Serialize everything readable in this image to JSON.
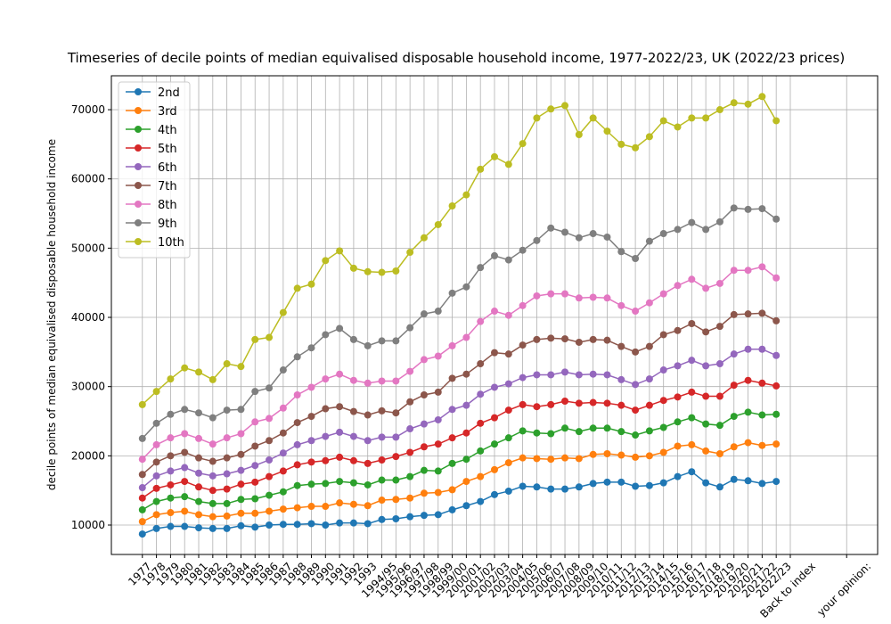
{
  "chart_data": {
    "type": "line",
    "title": "Timeseries of decile points of median equivalised disposable household income, 1977-2022/23, UK (2022/23 prices)",
    "y_label": "decile points of median equivalised disposable household income",
    "categories": [
      "1977",
      "1978",
      "1979",
      "1980",
      "1981",
      "1982",
      "1983",
      "1984",
      "1985",
      "1986",
      "1987",
      "1988",
      "1989",
      "1990",
      "1991",
      "1992",
      "1993",
      "1994/95",
      "1995/96",
      "1996/97",
      "1997/98",
      "1998/99",
      "1999/00",
      "2000/01",
      "2001/02",
      "2002/03",
      "2003/04",
      "2004/05",
      "2005/06",
      "2006/07",
      "2007/08",
      "2008/09",
      "2009/10",
      "2010/11",
      "2011/12",
      "2012/13",
      "2013/14",
      "2014/15",
      "2015/16",
      "2016/17",
      "2017/18",
      "2018/19",
      "2019/20",
      "2020/21",
      "2021/22",
      "2022/23",
      "Back to index",
      null,
      null,
      null,
      "your opinion:"
    ],
    "series": [
      {
        "name": "2nd",
        "color": "#1f77b4",
        "values": [
          8700,
          9500,
          9800,
          9800,
          9600,
          9500,
          9500,
          9900,
          9700,
          10000,
          10100,
          10100,
          10200,
          10000,
          10300,
          10300,
          10200,
          10800,
          10900,
          11200,
          11400,
          11500,
          12200,
          12800,
          13400,
          14400,
          14900,
          15600,
          15500,
          15200,
          15200,
          15500,
          16000,
          16200,
          16200,
          15600,
          15700,
          16100,
          17000,
          17700,
          16100,
          15500,
          16600,
          16400,
          16000,
          16300,
          null,
          null,
          null,
          null,
          null
        ]
      },
      {
        "name": "3rd",
        "color": "#ff7f0e",
        "values": [
          10500,
          11500,
          11800,
          12000,
          11500,
          11200,
          11300,
          11700,
          11700,
          12000,
          12300,
          12500,
          12700,
          12700,
          13200,
          13000,
          12800,
          13600,
          13700,
          13900,
          14600,
          14700,
          15100,
          16300,
          17000,
          18000,
          19000,
          19700,
          19600,
          19500,
          19700,
          19600,
          20200,
          20300,
          20100,
          19800,
          20000,
          20500,
          21400,
          21600,
          20700,
          20300,
          21300,
          21900,
          21500,
          21700,
          null,
          null,
          null,
          null,
          null
        ]
      },
      {
        "name": "4th",
        "color": "#2ca02c",
        "values": [
          12200,
          13400,
          13900,
          14100,
          13400,
          13100,
          13100,
          13700,
          13800,
          14300,
          14800,
          15700,
          15900,
          16000,
          16300,
          16100,
          15800,
          16500,
          16500,
          17000,
          17900,
          17800,
          18900,
          19500,
          20700,
          21700,
          22600,
          23600,
          23300,
          23200,
          24000,
          23500,
          24000,
          24000,
          23500,
          23000,
          23600,
          24100,
          24900,
          25500,
          24600,
          24400,
          25700,
          26300,
          25900,
          26000,
          null,
          null,
          null,
          null,
          null
        ]
      },
      {
        "name": "5th",
        "color": "#d62728",
        "values": [
          13900,
          15300,
          15800,
          16300,
          15500,
          15000,
          15200,
          15900,
          16200,
          17000,
          17800,
          18700,
          19100,
          19300,
          19800,
          19300,
          18900,
          19400,
          19900,
          20500,
          21300,
          21700,
          22600,
          23300,
          24700,
          25500,
          26600,
          27400,
          27100,
          27400,
          27900,
          27600,
          27700,
          27600,
          27300,
          26600,
          27300,
          28000,
          28500,
          29200,
          28600,
          28600,
          30200,
          30900,
          30500,
          30100,
          null,
          null,
          null,
          null,
          null
        ]
      },
      {
        "name": "6th",
        "color": "#9467bd",
        "values": [
          15400,
          17100,
          17800,
          18300,
          17500,
          17100,
          17400,
          17900,
          18600,
          19400,
          20400,
          21600,
          22200,
          22800,
          23400,
          22800,
          22200,
          22700,
          22700,
          23900,
          24600,
          25200,
          26700,
          27300,
          28900,
          29900,
          30400,
          31300,
          31700,
          31700,
          32100,
          31700,
          31800,
          31700,
          31000,
          30300,
          31100,
          32400,
          33000,
          33800,
          33000,
          33300,
          34700,
          35400,
          35400,
          34500,
          null,
          null,
          null,
          null,
          null
        ]
      },
      {
        "name": "7th",
        "color": "#8c564b",
        "values": [
          17300,
          19100,
          20000,
          20500,
          19700,
          19200,
          19700,
          20200,
          21400,
          22200,
          23300,
          24800,
          25700,
          26800,
          27100,
          26400,
          25900,
          26500,
          26200,
          27800,
          28800,
          29200,
          31200,
          31800,
          33300,
          34900,
          34700,
          36000,
          36800,
          37000,
          36900,
          36400,
          36800,
          36700,
          35800,
          35000,
          35800,
          37500,
          38100,
          39100,
          37900,
          38700,
          40400,
          40500,
          40600,
          39500,
          null,
          null,
          null,
          null,
          null
        ]
      },
      {
        "name": "8th",
        "color": "#e377c2",
        "values": [
          19500,
          21600,
          22600,
          23200,
          22500,
          21700,
          22600,
          23200,
          24900,
          25400,
          26900,
          28800,
          29900,
          31100,
          31800,
          30900,
          30500,
          30800,
          30800,
          32200,
          33900,
          34400,
          35900,
          37100,
          39400,
          40900,
          40300,
          41700,
          43100,
          43400,
          43400,
          42800,
          42900,
          42800,
          41700,
          40900,
          42100,
          43400,
          44600,
          45500,
          44200,
          44900,
          46800,
          46800,
          47300,
          45700,
          null,
          null,
          null,
          null,
          null
        ]
      },
      {
        "name": "9th",
        "color": "#7f7f7f",
        "values": [
          22500,
          24700,
          26000,
          26700,
          26200,
          25500,
          26600,
          26700,
          29300,
          29800,
          32400,
          34300,
          35600,
          37500,
          38400,
          36800,
          35900,
          36600,
          36600,
          38500,
          40500,
          40900,
          43500,
          44400,
          47200,
          48900,
          48300,
          49700,
          51100,
          52900,
          52300,
          51500,
          52100,
          51600,
          49500,
          48500,
          51000,
          52100,
          52700,
          53700,
          52700,
          53800,
          55800,
          55600,
          55700,
          54200,
          null,
          null,
          null,
          null,
          null
        ]
      },
      {
        "name": "10th",
        "color": "#bcbd22",
        "values": [
          27400,
          29300,
          31100,
          32700,
          32100,
          31000,
          33300,
          32900,
          36800,
          37100,
          40700,
          44200,
          44800,
          48200,
          49600,
          47100,
          46600,
          46500,
          46700,
          49400,
          51500,
          53400,
          56100,
          57700,
          61400,
          63200,
          62100,
          65100,
          68800,
          70100,
          70600,
          66400,
          68800,
          66900,
          65000,
          64500,
          66100,
          68400,
          67500,
          68800,
          68800,
          70000,
          71000,
          70800,
          71900,
          68400,
          null,
          null,
          null,
          null,
          null
        ]
      }
    ],
    "ylim": [
      5750,
      74900
    ],
    "yticks": [
      10000,
      20000,
      30000,
      40000,
      50000,
      60000,
      70000
    ],
    "grid": true,
    "legend": "upper left"
  }
}
